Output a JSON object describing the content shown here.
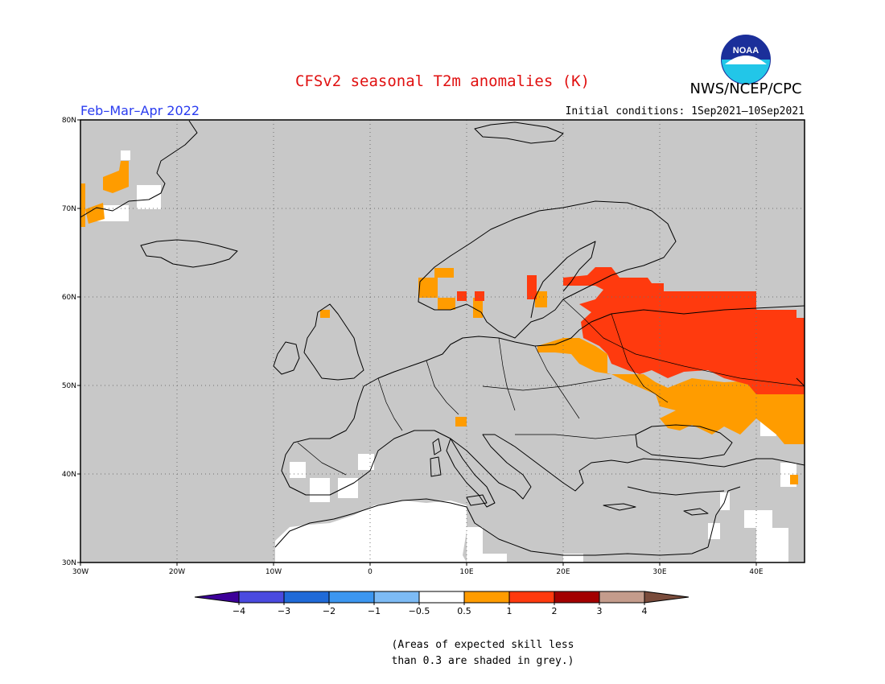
{
  "header": {
    "title": "CFSv2 seasonal T2m anomalies (K)",
    "agency": "NWS/NCEP/CPC",
    "period": "Feb–Mar–Apr 2022",
    "initial_conditions": "Initial conditions: 1Sep2021–10Sep2021",
    "logo_text": "NOAA"
  },
  "map": {
    "projection": "lat-lon",
    "lon_range": [
      -30,
      45
    ],
    "lat_range": [
      30,
      80
    ],
    "lat_ticks": [
      "80N",
      "70N",
      "60N",
      "50N",
      "40N",
      "30N"
    ],
    "lon_ticks": [
      "30W",
      "20W",
      "10W",
      "0",
      "10E",
      "20E",
      "30E",
      "40E"
    ],
    "grid": "dotted",
    "background_color": "#c8c8c8",
    "regions": [
      {
        "level": "2",
        "color": "#ff3a0e",
        "desc": "western Russia, Belarus, Baltics, southern Finland"
      },
      {
        "level": "1",
        "color": "#ff9c00",
        "desc": "Ukraine, Poland fringe, Norway coast, Greenland coast"
      },
      {
        "level": "neutral",
        "color": "#ffffff",
        "desc": "North Africa, Iberia patches, Middle East patches"
      }
    ]
  },
  "colorbar": {
    "labels": [
      "−4",
      "−3",
      "−2",
      "−1",
      "−0.5",
      "0.5",
      "1",
      "2",
      "3",
      "4"
    ],
    "colors": [
      "#3d0099",
      "#4a4adf",
      "#1f6ad8",
      "#3c96f0",
      "#7dbbf5",
      "#ffffff",
      "#ff9c00",
      "#ff3a0e",
      "#a30000",
      "#c49c8c",
      "#7a4c3c"
    ]
  },
  "footnote": {
    "line1": "(Areas of expected skill less",
    "line2": "than 0.3 are shaded in grey.)"
  }
}
